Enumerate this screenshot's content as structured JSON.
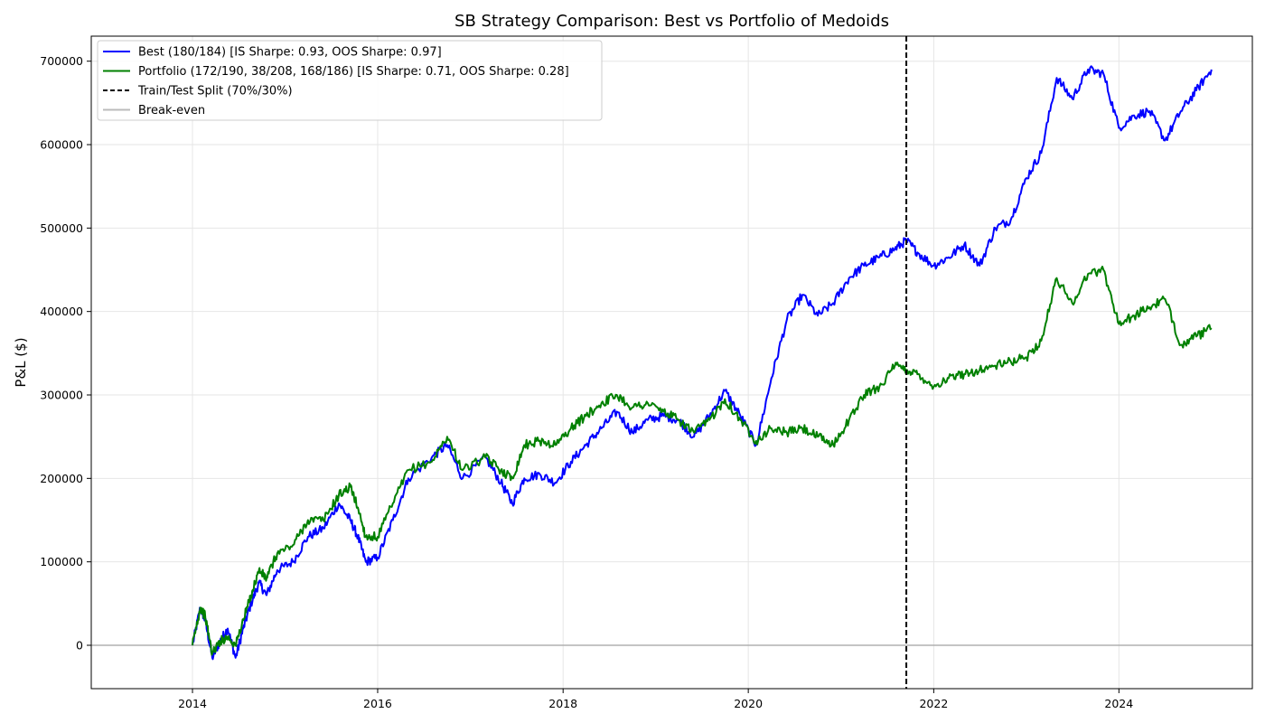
{
  "chart_data": {
    "type": "line",
    "title": "SB Strategy Comparison: Best vs Portfolio of Medoids",
    "xlabel": "",
    "ylabel": "P&L ($)",
    "xlim": [
      "2012-11-28",
      "2025-06-10"
    ],
    "ylim": [
      -52000,
      730000
    ],
    "x_ticks": [
      "2014",
      "2016",
      "2018",
      "2020",
      "2022",
      "2024"
    ],
    "y_ticks": [
      "0",
      "100000",
      "200000",
      "300000",
      "400000",
      "500000",
      "600000",
      "700000"
    ],
    "grid": true,
    "legend_position": "top-left",
    "legend": [
      {
        "label": "Best (180/184) [IS Sharpe: 0.93, OOS Sharpe: 0.97]",
        "color": "#0000ff",
        "style": "solid"
      },
      {
        "label": "Portfolio (172/190, 38/208, 168/186) [IS Sharpe: 0.71, OOS Sharpe: 0.28]",
        "color": "#008000",
        "style": "solid"
      },
      {
        "label": "Train/Test Split (70%/30%)",
        "color": "#000000",
        "style": "dashed"
      },
      {
        "label": "Break-even",
        "color": "#bbbbbb",
        "style": "solid"
      }
    ],
    "split_date": "2021-09-15",
    "break_even": 0,
    "series": [
      {
        "name": "Best (180/184) [IS Sharpe: 0.93, OOS Sharpe: 0.97]",
        "color": "#0000ff",
        "x": [
          "2014-01-01",
          "2014-02-01",
          "2014-02-20",
          "2014-03-20",
          "2014-04-20",
          "2014-05-20",
          "2014-06-20",
          "2014-07-20",
          "2014-08-20",
          "2014-09-20",
          "2014-10-20",
          "2014-12-01",
          "2015-02-01",
          "2015-04-01",
          "2015-06-01",
          "2015-08-01",
          "2015-09-15",
          "2015-10-15",
          "2015-11-15",
          "2016-01-01",
          "2016-03-01",
          "2016-05-01",
          "2016-08-01",
          "2016-10-01",
          "2016-12-01",
          "2017-03-01",
          "2017-05-01",
          "2017-06-15",
          "2017-08-01",
          "2017-10-01",
          "2017-12-01",
          "2018-02-01",
          "2018-04-01",
          "2018-06-01",
          "2018-08-01",
          "2018-10-01",
          "2018-12-01",
          "2019-02-01",
          "2019-04-01",
          "2019-06-01",
          "2019-08-01",
          "2019-10-01",
          "2019-12-01",
          "2020-02-01",
          "2020-04-01",
          "2020-06-01",
          "2020-08-01",
          "2020-10-01",
          "2020-12-01",
          "2021-02-01",
          "2021-04-01",
          "2021-06-01",
          "2021-08-01",
          "2021-09-15",
          "2021-11-01",
          "2022-01-01",
          "2022-03-01",
          "2022-05-01",
          "2022-07-01",
          "2022-09-01",
          "2022-11-01",
          "2023-01-01",
          "2023-03-01",
          "2023-05-01",
          "2023-07-01",
          "2023-09-01",
          "2023-11-01",
          "2024-01-01",
          "2024-03-01",
          "2024-05-01",
          "2024-07-01",
          "2024-09-01",
          "2024-11-01",
          "2024-12-31"
        ],
        "values": [
          0,
          45000,
          30000,
          -15000,
          5000,
          20000,
          -15000,
          20000,
          50000,
          75000,
          60000,
          90000,
          100000,
          130000,
          140000,
          170000,
          150000,
          130000,
          100000,
          105000,
          150000,
          200000,
          225000,
          240000,
          200000,
          225000,
          195000,
          170000,
          200000,
          205000,
          195000,
          220000,
          240000,
          260000,
          280000,
          255000,
          270000,
          275000,
          270000,
          250000,
          275000,
          305000,
          275000,
          240000,
          320000,
          390000,
          420000,
          395000,
          410000,
          440000,
          455000,
          465000,
          475000,
          485000,
          470000,
          455000,
          465000,
          480000,
          455000,
          500000,
          510000,
          560000,
          590000,
          680000,
          655000,
          690000,
          685000,
          620000,
          635000,
          640000,
          605000,
          640000,
          665000,
          690000
        ]
      },
      {
        "name": "Portfolio (172/190, 38/208, 168/186) [IS Sharpe: 0.71, OOS Sharpe: 0.28]",
        "color": "#008000",
        "x": [
          "2014-01-01",
          "2014-02-01",
          "2014-02-20",
          "2014-03-20",
          "2014-04-20",
          "2014-05-20",
          "2014-06-20",
          "2014-07-20",
          "2014-08-20",
          "2014-09-20",
          "2014-10-20",
          "2014-12-01",
          "2015-02-01",
          "2015-04-01",
          "2015-06-01",
          "2015-08-01",
          "2015-09-15",
          "2015-10-15",
          "2015-11-15",
          "2016-01-01",
          "2016-03-01",
          "2016-05-01",
          "2016-08-01",
          "2016-10-01",
          "2016-12-01",
          "2017-03-01",
          "2017-05-01",
          "2017-06-15",
          "2017-08-01",
          "2017-10-01",
          "2017-12-01",
          "2018-02-01",
          "2018-04-01",
          "2018-06-01",
          "2018-08-01",
          "2018-10-01",
          "2018-12-01",
          "2019-02-01",
          "2019-04-01",
          "2019-06-01",
          "2019-08-01",
          "2019-10-01",
          "2019-12-01",
          "2020-02-01",
          "2020-04-01",
          "2020-06-01",
          "2020-08-01",
          "2020-10-01",
          "2020-12-01",
          "2021-02-01",
          "2021-04-01",
          "2021-06-01",
          "2021-08-01",
          "2021-09-15",
          "2021-11-01",
          "2022-01-01",
          "2022-03-01",
          "2022-05-01",
          "2022-07-01",
          "2022-09-01",
          "2022-11-01",
          "2023-01-01",
          "2023-03-01",
          "2023-05-01",
          "2023-07-01",
          "2023-09-01",
          "2023-11-01",
          "2024-01-01",
          "2024-03-01",
          "2024-05-01",
          "2024-07-01",
          "2024-09-01",
          "2024-11-01",
          "2024-12-31"
        ],
        "values": [
          0,
          45000,
          35000,
          -10000,
          5000,
          10000,
          0,
          30000,
          60000,
          90000,
          80000,
          110000,
          120000,
          150000,
          150000,
          180000,
          190000,
          165000,
          130000,
          130000,
          170000,
          210000,
          220000,
          250000,
          210000,
          225000,
          210000,
          200000,
          240000,
          245000,
          240000,
          260000,
          275000,
          290000,
          300000,
          285000,
          290000,
          280000,
          270000,
          255000,
          270000,
          295000,
          270000,
          245000,
          260000,
          255000,
          260000,
          250000,
          240000,
          270000,
          300000,
          310000,
          335000,
          330000,
          325000,
          310000,
          320000,
          325000,
          330000,
          335000,
          340000,
          345000,
          365000,
          440000,
          410000,
          445000,
          450000,
          385000,
          395000,
          405000,
          415000,
          360000,
          370000,
          380000
        ]
      }
    ]
  }
}
